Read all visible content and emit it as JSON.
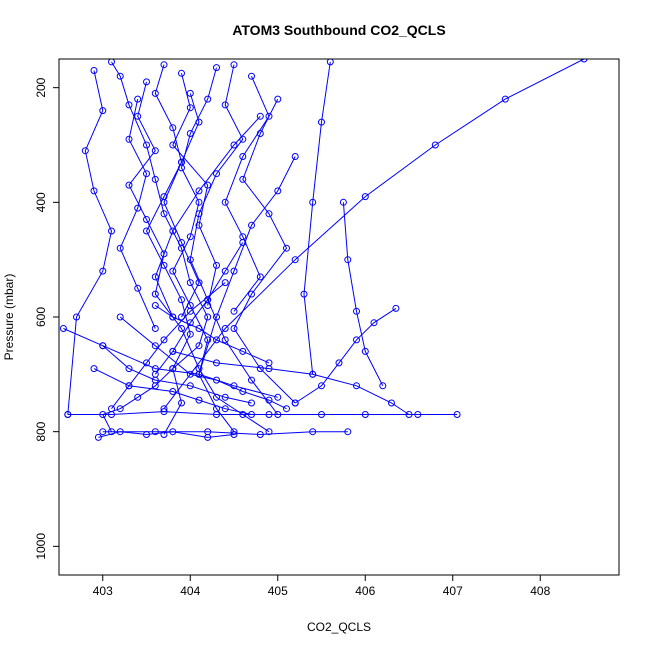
{
  "chart_data": {
    "type": "line",
    "title": "ATOM3 Southbound CO2_QCLS",
    "xlabel": "CO2_QCLS",
    "ylabel": "Pressure (mbar)",
    "xlim": [
      402.5,
      408.9
    ],
    "ylim": [
      1050,
      150
    ],
    "y_reversed": true,
    "grid": false,
    "legend": "none",
    "color": "#0000ff",
    "marker": "open-circle",
    "xticks": [
      403,
      404,
      405,
      406,
      407,
      408
    ],
    "yticks": [
      200,
      400,
      600,
      800,
      1000
    ],
    "series": [
      {
        "x": [
          403.1,
          403.2,
          403.3,
          403.5,
          403.6,
          403.7,
          403.9,
          404.0,
          404.2,
          404.1,
          403.8,
          403.6,
          403.4,
          403.2,
          403.0,
          403.1
        ],
        "y": [
          155,
          180,
          230,
          300,
          360,
          420,
          480,
          540,
          600,
          650,
          690,
          720,
          740,
          760,
          770,
          800
        ]
      },
      {
        "x": [
          403.7,
          403.6,
          403.8,
          403.9,
          403.7,
          403.5,
          403.7,
          403.9,
          404.0,
          403.8,
          403.9,
          403.7
        ],
        "y": [
          160,
          210,
          270,
          330,
          390,
          450,
          510,
          570,
          630,
          690,
          750,
          805
        ]
      },
      {
        "x": [
          404.3,
          404.2,
          404.0,
          403.9,
          404.1,
          404.0,
          403.8,
          404.0,
          404.2,
          404.1,
          404.3,
          404.5
        ],
        "y": [
          165,
          220,
          280,
          340,
          400,
          460,
          520,
          580,
          640,
          700,
          760,
          800
        ]
      },
      {
        "x": [
          402.9,
          403.0,
          402.8,
          402.9,
          403.1,
          403.0,
          402.7,
          402.6
        ],
        "y": [
          170,
          240,
          310,
          380,
          450,
          520,
          600,
          770
        ]
      },
      {
        "x": [
          404.5,
          404.4,
          404.6,
          404.3,
          404.1,
          404.0,
          404.2,
          404.4,
          404.7,
          405.0
        ],
        "y": [
          160,
          230,
          290,
          350,
          420,
          500,
          570,
          640,
          710,
          770
        ]
      },
      {
        "x": [
          405.0,
          404.8,
          404.6,
          404.9,
          405.1,
          404.7,
          404.5,
          404.8,
          405.2
        ],
        "y": [
          220,
          280,
          360,
          420,
          480,
          560,
          620,
          690,
          750
        ]
      },
      {
        "x": [
          405.2,
          405.0,
          404.7,
          404.5,
          404.3,
          404.1
        ],
        "y": [
          320,
          380,
          440,
          520,
          600,
          700
        ]
      },
      {
        "x": [
          403.5,
          403.4,
          403.6,
          403.3,
          403.5,
          403.7,
          403.6,
          403.9,
          404.1,
          404.3,
          404.6,
          404.9
        ],
        "y": [
          190,
          250,
          310,
          370,
          430,
          490,
          560,
          620,
          690,
          740,
          770,
          800
        ]
      },
      {
        "x": [
          402.95,
          403.2,
          403.5,
          403.8,
          404.2,
          404.5
        ],
        "y": [
          810,
          800,
          805,
          800,
          810,
          805
        ]
      },
      {
        "x": [
          403.0,
          403.6,
          404.2,
          404.8,
          405.4,
          405.8
        ],
        "y": [
          800,
          800,
          800,
          805,
          800,
          800
        ]
      },
      {
        "x": [
          402.6,
          403.1,
          403.7,
          404.3,
          404.9,
          405.5,
          406.0,
          406.6,
          407.05
        ],
        "y": [
          770,
          770,
          765,
          770,
          770,
          770,
          770,
          770,
          770
        ]
      },
      {
        "x": [
          402.55,
          403.0,
          403.6,
          404.1,
          404.5,
          405.0
        ],
        "y": [
          620,
          650,
          690,
          700,
          720,
          740
        ]
      },
      {
        "x": [
          403.8,
          404.3,
          404.9,
          405.4,
          405.9,
          406.3,
          406.5
        ],
        "y": [
          660,
          680,
          690,
          700,
          720,
          750,
          770
        ]
      },
      {
        "x": [
          406.35,
          406.1,
          405.9,
          405.7,
          405.5,
          405.2
        ],
        "y": [
          585,
          610,
          640,
          680,
          720,
          750
        ]
      },
      {
        "x": [
          405.75,
          405.8,
          405.9,
          406.0,
          406.2
        ],
        "y": [
          400,
          500,
          590,
          660,
          720
        ]
      },
      {
        "x": [
          404.8,
          404.5,
          404.1,
          403.8,
          403.6,
          403.8
        ],
        "y": [
          250,
          300,
          380,
          450,
          530,
          600
        ]
      },
      {
        "x": [
          404.0,
          404.1,
          403.9,
          403.7,
          403.9,
          404.1,
          403.9
        ],
        "y": [
          210,
          260,
          330,
          400,
          470,
          540,
          600
        ]
      },
      {
        "x": [
          403.4,
          403.3,
          403.5,
          403.4,
          403.2,
          403.4,
          403.6
        ],
        "y": [
          220,
          290,
          350,
          410,
          480,
          550,
          620
        ]
      },
      {
        "x": [
          404.7,
          404.9,
          404.6,
          404.4,
          404.6,
          404.8,
          404.5
        ],
        "y": [
          180,
          250,
          320,
          400,
          460,
          530,
          590
        ]
      },
      {
        "x": [
          403.7,
          404.4,
          405.2,
          406.0,
          406.8,
          407.6,
          408.5
        ],
        "y": [
          760,
          620,
          500,
          390,
          300,
          220,
          150
        ]
      },
      {
        "x": [
          405.6,
          405.5,
          405.4,
          405.3,
          405.4
        ],
        "y": [
          155,
          260,
          400,
          560,
          700
        ]
      },
      {
        "x": [
          403.9,
          404.0,
          403.8,
          404.2,
          404.1,
          404.3,
          404.2
        ],
        "y": [
          175,
          235,
          300,
          370,
          440,
          510,
          580
        ]
      },
      {
        "x": [
          403.2,
          403.6,
          404.0,
          404.3,
          404.6,
          404.9,
          405.1
        ],
        "y": [
          600,
          650,
          700,
          710,
          730,
          745,
          760
        ]
      },
      {
        "x": [
          402.9,
          403.3,
          403.8,
          404.1,
          404.4,
          404.7
        ],
        "y": [
          690,
          720,
          730,
          745,
          760,
          770
        ]
      },
      {
        "x": [
          403.0,
          403.3,
          403.6,
          404.0,
          404.4,
          404.7
        ],
        "y": [
          650,
          690,
          710,
          720,
          740,
          750
        ]
      },
      {
        "x": [
          404.4,
          404.0,
          403.7,
          403.5,
          403.3,
          403.1
        ],
        "y": [
          540,
          590,
          640,
          680,
          720,
          760
        ]
      },
      {
        "x": [
          404.6,
          404.4,
          404.2,
          404.0,
          403.8,
          403.6
        ],
        "y": [
          470,
          520,
          570,
          610,
          660,
          700
        ]
      },
      {
        "x": [
          403.6,
          403.8,
          404.1,
          404.3,
          404.6,
          404.9
        ],
        "y": [
          580,
          600,
          620,
          640,
          660,
          680
        ]
      }
    ]
  }
}
